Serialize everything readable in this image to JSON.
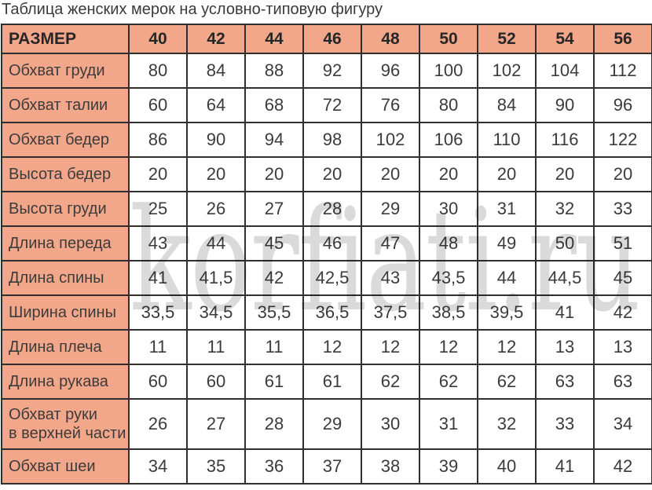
{
  "colors": {
    "header_bg": "#f3a78a",
    "border": "#2f2f2f",
    "text": "#3b3b3b",
    "title_text": "#3a3a3a",
    "watermark": "#dadada",
    "cell_bg": "#ffffff"
  },
  "chart_data": {
    "type": "table",
    "title": "Таблица женских мерок на условно-типовую фигуру",
    "watermark": "korfiati.ru",
    "corner_header": "РАЗМЕР",
    "size_columns": [
      "40",
      "42",
      "44",
      "46",
      "48",
      "50",
      "52",
      "54",
      "56"
    ],
    "rows": [
      {
        "label": "Обхват груди",
        "values": [
          "80",
          "84",
          "88",
          "92",
          "96",
          "100",
          "102",
          "104",
          "112"
        ]
      },
      {
        "label": "Обхват талии",
        "values": [
          "60",
          "64",
          "68",
          "72",
          "76",
          "80",
          "84",
          "90",
          "96"
        ]
      },
      {
        "label": "Обхват бедер",
        "values": [
          "86",
          "90",
          "94",
          "98",
          "102",
          "106",
          "110",
          "116",
          "122"
        ]
      },
      {
        "label": "Высота бедер",
        "values": [
          "20",
          "20",
          "20",
          "20",
          "20",
          "20",
          "20",
          "20",
          "20"
        ]
      },
      {
        "label": "Высота груди",
        "values": [
          "25",
          "26",
          "27",
          "28",
          "29",
          "30",
          "31",
          "32",
          "33"
        ]
      },
      {
        "label": "Длина переда",
        "values": [
          "43",
          "44",
          "45",
          "46",
          "47",
          "48",
          "49",
          "50",
          "51"
        ]
      },
      {
        "label": "Длина спины",
        "values": [
          "41",
          "41,5",
          "42",
          "42,5",
          "43",
          "43,5",
          "44",
          "44,5",
          "45"
        ]
      },
      {
        "label": "Ширина спины",
        "values": [
          "33,5",
          "34,5",
          "35,5",
          "36,5",
          "37,5",
          "38,5",
          "39,5",
          "41",
          "42"
        ]
      },
      {
        "label": "Длина плеча",
        "values": [
          "11",
          "11",
          "11",
          "12",
          "12",
          "12",
          "12",
          "13",
          "13"
        ]
      },
      {
        "label": "Длина рукава",
        "values": [
          "60",
          "60",
          "61",
          "61",
          "62",
          "62",
          "62",
          "63",
          "63"
        ]
      },
      {
        "label": "Обхват руки\nв верхней части",
        "values": [
          "26",
          "27",
          "28",
          "29",
          "30",
          "31",
          "32",
          "33",
          "34"
        ]
      },
      {
        "label": "Обхват шеи",
        "values": [
          "34",
          "35",
          "36",
          "37",
          "38",
          "39",
          "40",
          "41",
          "42"
        ]
      }
    ]
  }
}
